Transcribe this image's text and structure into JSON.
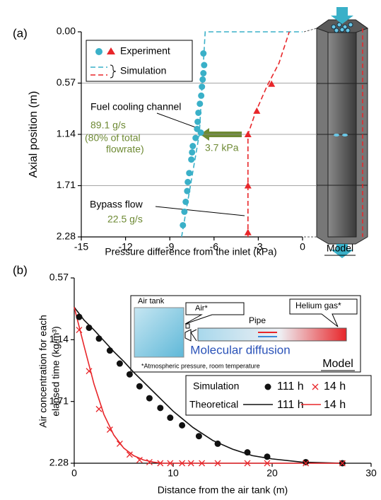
{
  "chart_data": [
    {
      "type": "scatter",
      "panel_label": "(a)",
      "xlabel": "Pressure difference from the inlet (kPa)",
      "ylabel": "Axial position (m)",
      "xlim": [
        -15,
        0
      ],
      "xticks": [
        -15,
        -12,
        -9,
        -6,
        -3,
        0
      ],
      "ylim": [
        0,
        2.28
      ],
      "y_inverted": true,
      "yticks": [
        {
          "value": 0,
          "label": "0.00"
        },
        0.57,
        1.14,
        1.71,
        2.28
      ],
      "grid": true,
      "legend": [
        "Experiment",
        "Simulation"
      ],
      "series": [
        {
          "kind": "marker",
          "marker": "circle",
          "color": "#3ab0c8",
          "x": [
            -6.72,
            -6.67,
            -6.72,
            -6.77,
            -6.82,
            -6.87,
            -6.96,
            -7.06,
            -7.11,
            -7.15,
            -6.9,
            -7.25,
            -7.44,
            -7.49,
            -7.54,
            -7.68,
            -7.78,
            -7.82,
            -7.92,
            -8.01,
            -8.11
          ],
          "values": [
            0.24,
            0.37,
            0.46,
            0.53,
            0.61,
            0.71,
            0.8,
            0.9,
            1.0,
            1.08,
            1.12,
            1.18,
            1.27,
            1.34,
            1.42,
            1.57,
            1.67,
            1.77,
            1.89,
            2.0,
            2.15
          ]
        },
        {
          "kind": "marker",
          "marker": "triangle",
          "color": "#e8262a",
          "x": [
            -2.1,
            -3.1,
            -3.7,
            -3.7,
            -3.7
          ],
          "values": [
            0.58,
            0.88,
            1.14,
            1.71,
            2.23
          ]
        },
        {
          "kind": "line",
          "dash": true,
          "color": "#3ab0c8",
          "x": [
            -8.2,
            -7.0,
            -6.6,
            0
          ],
          "values": [
            2.28,
            1.14,
            0,
            0
          ]
        },
        {
          "kind": "line",
          "dash": true,
          "color": "#e8262a",
          "x": [
            -3.7,
            -3.7,
            -3.2,
            -2.4,
            -1.6,
            -0.9
          ],
          "values": [
            2.28,
            1.14,
            0.9,
            0.6,
            0.35,
            0
          ]
        }
      ],
      "annotations": [
        "Fuel cooling channel",
        "89.1 g/s",
        "(80% of total",
        "flowrate)",
        "3.7 kPa",
        "Bypass flow",
        "22.5 g/s",
        "Model"
      ]
    },
    {
      "type": "scatter",
      "panel_label": "(b)",
      "xlabel": "Distance from the air tank (m)",
      "ylabel": [
        "Air concentration for each",
        "elapsed time (kg/m³)"
      ],
      "xlim": [
        0,
        30
      ],
      "xticks": [
        0,
        10,
        20,
        30
      ],
      "ylim": [
        0.57,
        2.28
      ],
      "y_inverted": true,
      "yticks": [
        0.57,
        1.14,
        1.71,
        2.28
      ],
      "grid": false,
      "legend_rows": [
        "Simulation",
        "Theoretical"
      ],
      "series": [
        {
          "name": "111 h",
          "kind": "marker",
          "marker": "circle",
          "color": "#111111",
          "x": [
            0.5,
            1.5,
            2.5,
            3.6,
            4.6,
            5.6,
            6.6,
            7.6,
            8.7,
            9.7,
            10.9,
            12.6,
            14.5,
            17.5,
            19.5,
            23.4,
            27.1
          ],
          "values": [
            0.93,
            1.03,
            1.13,
            1.24,
            1.36,
            1.46,
            1.57,
            1.68,
            1.77,
            1.86,
            1.93,
            2.03,
            2.1,
            2.18,
            2.22,
            2.27,
            2.28
          ]
        },
        {
          "name": "14 h",
          "kind": "marker",
          "marker": "cross",
          "color": "#e8262a",
          "x": [
            0.5,
            1.5,
            2.5,
            3.6,
            4.6,
            5.6,
            6.6,
            7.6,
            8.7,
            9.7,
            10.9,
            11.8,
            12.9,
            14.5,
            17.5,
            19.5,
            23.4,
            27.1
          ],
          "values": [
            1.05,
            1.43,
            1.78,
            1.97,
            2.1,
            2.2,
            2.25,
            2.27,
            2.28,
            2.28,
            2.28,
            2.28,
            2.28,
            2.28,
            2.28,
            2.28,
            2.28,
            2.28
          ]
        },
        {
          "name": "111 h",
          "kind": "line",
          "dash": false,
          "color": "#111111",
          "x": [
            0,
            1,
            2,
            3,
            4,
            5,
            6,
            7,
            8,
            9,
            10,
            12,
            14,
            16,
            18,
            20,
            23,
            27.1
          ],
          "values": [
            0.84,
            0.96,
            1.05,
            1.15,
            1.25,
            1.34,
            1.44,
            1.53,
            1.62,
            1.71,
            1.8,
            1.95,
            2.07,
            2.15,
            2.21,
            2.24,
            2.27,
            2.28
          ]
        },
        {
          "name": "14 h",
          "kind": "line",
          "dash": false,
          "color": "#e8262a",
          "x": [
            0,
            1,
            2,
            3,
            4,
            5,
            6,
            7,
            8,
            9,
            10,
            27.1
          ],
          "values": [
            0.84,
            1.2,
            1.55,
            1.83,
            2.02,
            2.14,
            2.21,
            2.25,
            2.27,
            2.28,
            2.28,
            2.28
          ]
        }
      ],
      "inset": [
        "Air tank",
        "Air*",
        "Pipe",
        "Helium gas*",
        "Molecular diffusion",
        "*Atmospheric pressure, room temperature",
        "Model"
      ]
    }
  ]
}
